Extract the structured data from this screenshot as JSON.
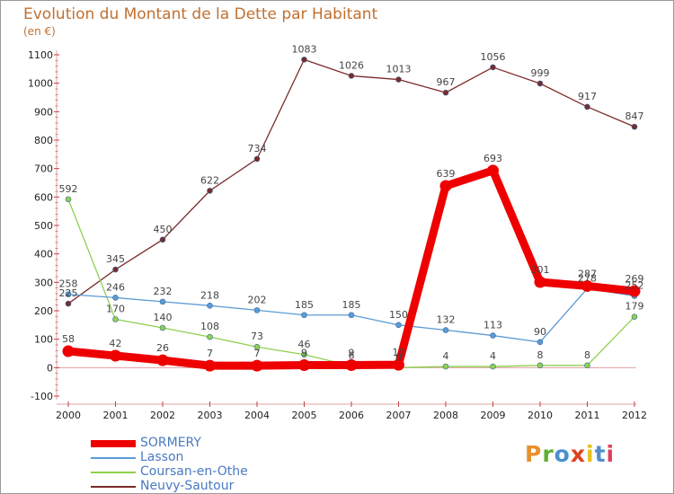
{
  "title": "Evolution du Montant de la Dette par Habitant",
  "unit": "(en €)",
  "logo": {
    "text": "Proxiti",
    "colors": [
      "#e8902a",
      "#60b030",
      "#4a90d0",
      "#e04020",
      "#e8c020",
      "#5090d0",
      "#e04060"
    ]
  },
  "chart_data": {
    "type": "line",
    "title": "Evolution du Montant de la Dette par Habitant",
    "subtitle": "(en €)",
    "x": [
      "2000",
      "2001",
      "2002",
      "2003",
      "2004",
      "2005",
      "2006",
      "2007",
      "2008",
      "2009",
      "2010",
      "2011",
      "2012"
    ],
    "ylim": [
      -100,
      1100
    ],
    "yticks": [
      -100,
      0,
      100,
      200,
      300,
      400,
      500,
      600,
      700,
      800,
      900,
      1000,
      1100
    ],
    "grid": false,
    "legend_position": "bottom-left",
    "series": [
      {
        "name": "SORMERY",
        "color": "#ee0000",
        "values": [
          58,
          42,
          26,
          7,
          7,
          9,
          9,
          10,
          639,
          693,
          301,
          287,
          269
        ],
        "labels": [
          "58",
          "42",
          "26",
          "7",
          "7",
          "9",
          "9",
          "10",
          "639",
          "693",
          "301",
          "287",
          "269"
        ]
      },
      {
        "name": "Lasson",
        "color": "#5b9bd5",
        "values": [
          258,
          246,
          232,
          218,
          202,
          185,
          185,
          150,
          132,
          113,
          90,
          278,
          252
        ],
        "labels": [
          "258",
          "246",
          "232",
          "218",
          "202",
          "185",
          "185",
          "150",
          "132",
          "113",
          "90",
          "278",
          "252"
        ]
      },
      {
        "name": "Coursan-en-Othe",
        "color": "#8fd04f",
        "values": [
          592,
          170,
          140,
          108,
          73,
          46,
          6,
          0,
          4,
          4,
          8,
          8,
          179
        ],
        "labels": [
          "592",
          "170",
          "140",
          "108",
          "73",
          "46",
          "6",
          "0",
          "4",
          "4",
          "8",
          "8",
          "179"
        ]
      },
      {
        "name": "Neuvy-Sautour",
        "color": "#7a2b2b",
        "values": [
          225,
          345,
          450,
          622,
          734,
          1083,
          1026,
          1013,
          967,
          1056,
          999,
          917,
          847
        ],
        "labels": [
          "225",
          "345",
          "450",
          "622",
          "734",
          "1083",
          "1026",
          "1013",
          "967",
          "1056",
          "999",
          "917",
          "847"
        ]
      }
    ]
  }
}
